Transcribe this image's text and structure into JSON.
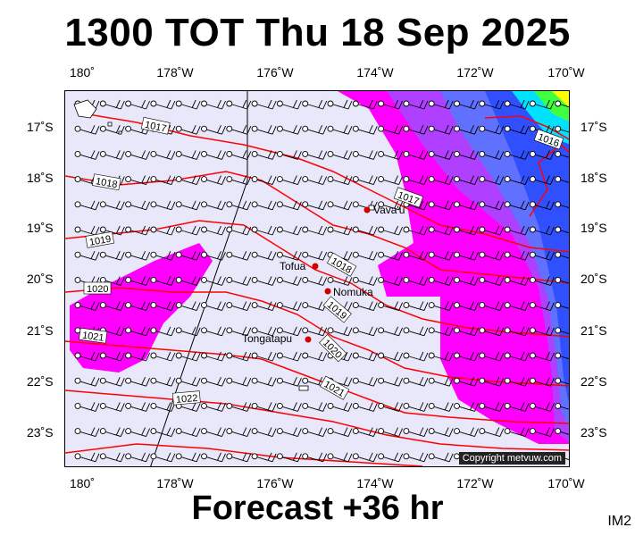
{
  "title": "1300 TOT Thu 18 Sep 2025",
  "footer": "Forecast +36 hr",
  "code": "IM2",
  "copyright": "Copyright metvuw.com",
  "lon_labels": [
    "180˚",
    "178˚W",
    "176˚W",
    "174˚W",
    "172˚W",
    "170˚W"
  ],
  "lat_labels": [
    "17˚S",
    "18˚S",
    "19˚S",
    "20˚S",
    "21˚S",
    "22˚S",
    "23˚S"
  ],
  "isobar_labels": [
    "1017",
    "1018",
    "1019",
    "1020",
    "1021",
    "1022",
    "1017",
    "1018",
    "1019",
    "1020",
    "1021",
    "1016"
  ],
  "places": [
    "Vava'u",
    "Tofua",
    "Nomuka",
    "Tongatapu"
  ],
  "colors": {
    "background": "#e8e8fa",
    "magenta": "#ff00ff",
    "violet": "#b040ff",
    "blue": "#3060ff",
    "deep_blue": "#1030ff",
    "cyan": "#00e0ff",
    "green": "#40ff40",
    "yellow": "#ffff00",
    "isobar": "#ff0000"
  }
}
